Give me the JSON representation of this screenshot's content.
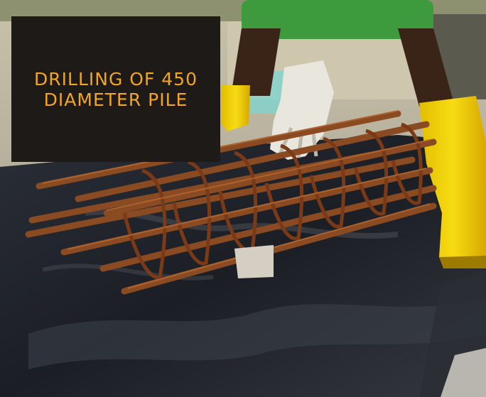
{
  "caption": {
    "text": "DRILLING OF 450 DIAMETER PILE"
  },
  "colors": {
    "caption_background": "#1d1a17",
    "caption_text": "#f4a51f",
    "rebar": "#8a4a22",
    "sheet": "#1e2128",
    "boot": "#f2d100"
  },
  "scene": {
    "subject": "rebar-cage",
    "icons": [
      "rebar-cage-icon",
      "worker-legs-icon",
      "yellow-boot-icon",
      "glove-icon",
      "plastic-sheet-icon"
    ]
  }
}
